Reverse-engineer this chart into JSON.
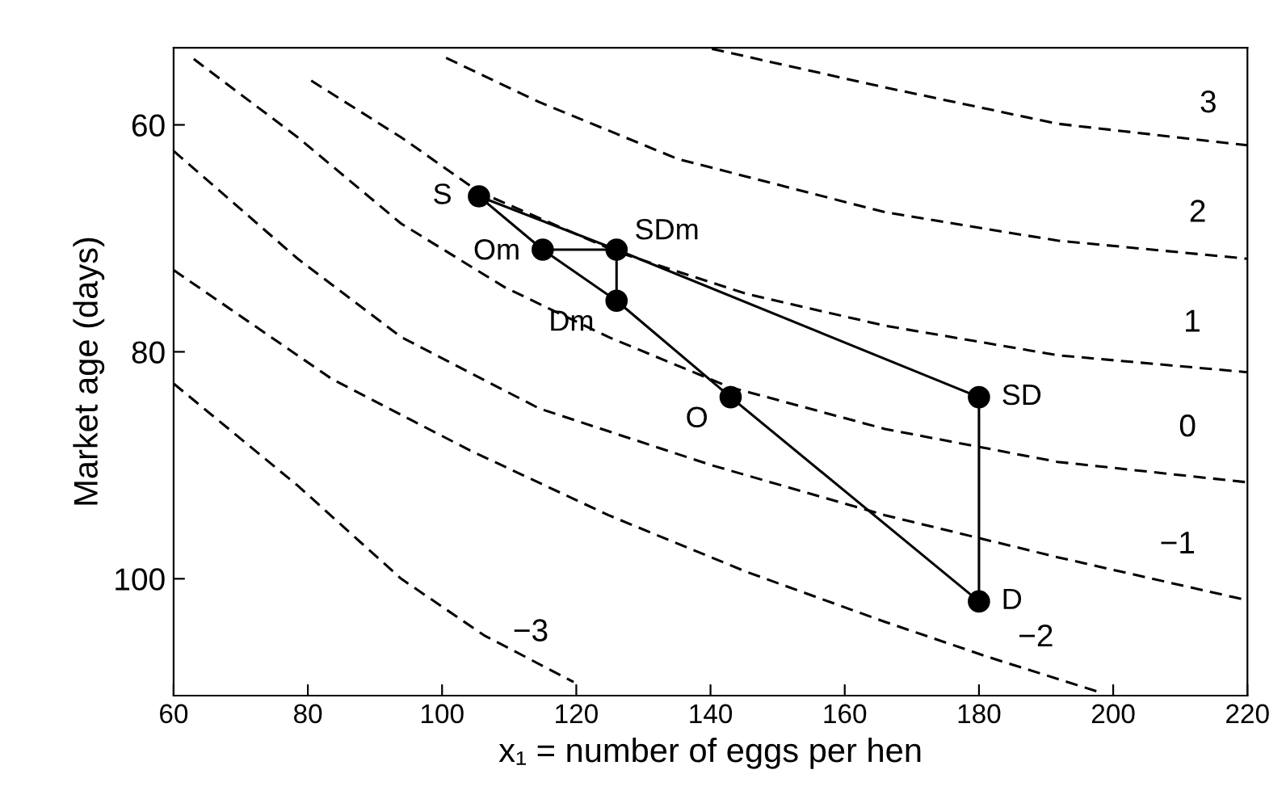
{
  "chart_data": {
    "type": "line",
    "xlabel": "x₁ = number of eggs per hen",
    "ylabel": "Market age (days)",
    "xlim": [
      60,
      220
    ],
    "ylim": [
      110.3,
      53.2
    ],
    "xticks": [
      60,
      80,
      100,
      120,
      140,
      160,
      180,
      200,
      220
    ],
    "yticks": [
      60,
      80,
      100
    ],
    "grid": false,
    "legend": false,
    "series": [
      {
        "name": "3",
        "line_style": "dashed",
        "marker": "none",
        "color": "#000000",
        "x": [
          140.2,
          166,
          191.7,
          220
        ],
        "values": [
          53.3,
          56.7,
          59.9,
          61.8
        ]
      },
      {
        "name": "2",
        "line_style": "dashed",
        "marker": "none",
        "color": "#000000",
        "x": [
          100.6,
          114.5,
          135.1,
          166,
          191.7,
          220
        ],
        "values": [
          54.1,
          58,
          63,
          67.7,
          70.2,
          71.8
        ]
      },
      {
        "name": "1",
        "line_style": "dashed",
        "marker": "none",
        "color": "#000000",
        "x": [
          80.5,
          93.9,
          105.5,
          126.1,
          145.4,
          166,
          191.7,
          220
        ],
        "values": [
          56.1,
          61.1,
          65.9,
          71.2,
          74.9,
          77.7,
          80.3,
          81.8
        ]
      },
      {
        "name": "0",
        "line_style": "dashed",
        "marker": "none",
        "color": "#000000",
        "x": [
          63,
          78.5,
          93.9,
          109.3,
          124.8,
          142.8,
          166,
          191.7,
          220
        ],
        "values": [
          54.2,
          61.1,
          68.7,
          74.3,
          78.7,
          83.1,
          86.8,
          89.7,
          91.5
        ]
      },
      {
        "name": "−1",
        "line_style": "dashed",
        "marker": "none",
        "color": "#000000",
        "x": [
          60,
          78.5,
          93.9,
          114.5,
          140.2,
          166,
          191.7,
          220
        ],
        "values": [
          62.3,
          71.8,
          78.7,
          85,
          90,
          94.4,
          98.1,
          101.9
        ]
      },
      {
        "name": "−2",
        "line_style": "dashed",
        "marker": "none",
        "color": "#000000",
        "x": [
          60,
          83.6,
          104.2,
          124.8,
          145.4,
          166,
          181.4,
          198
        ],
        "values": [
          72.8,
          82.4,
          88.7,
          94.4,
          99.4,
          103.8,
          106.9,
          110
        ]
      },
      {
        "name": "−3",
        "line_style": "dashed",
        "marker": "none",
        "color": "#000000",
        "x": [
          60,
          78.5,
          93.9,
          106.3,
          119.6
        ],
        "values": [
          82.8,
          91.8,
          100,
          105,
          109.1
        ]
      },
      {
        "line_style": "solid",
        "marker": "none",
        "color": "#000000",
        "x": [
          105.5,
          126,
          180
        ],
        "values": [
          66.3,
          71,
          84
        ]
      },
      {
        "line_style": "solid",
        "marker": "none",
        "color": "#000000",
        "x": [
          180,
          180
        ],
        "values": [
          84,
          102
        ]
      },
      {
        "line_style": "solid",
        "marker": "none",
        "color": "#000000",
        "x": [
          105.5,
          115,
          126,
          143,
          180
        ],
        "values": [
          66.3,
          71,
          75.5,
          84,
          102
        ]
      },
      {
        "line_style": "solid",
        "marker": "none",
        "color": "#000000",
        "x": [
          115,
          126
        ],
        "values": [
          71,
          71
        ]
      },
      {
        "line_style": "solid",
        "marker": "none",
        "color": "#000000",
        "x": [
          126,
          126
        ],
        "values": [
          71,
          75.5
        ]
      },
      {
        "type": "scatter",
        "marker": "circle",
        "color": "#000000",
        "x": [
          105.5,
          115,
          126,
          126,
          143,
          180,
          180
        ],
        "values": [
          66.3,
          71,
          71,
          75.5,
          84,
          84,
          102
        ]
      }
    ],
    "annotations": [
      {
        "text": "S",
        "x": 105.5,
        "y": 66.3
      },
      {
        "text": "Om",
        "x": 115,
        "y": 71
      },
      {
        "text": "SDm",
        "x": 126,
        "y": 71
      },
      {
        "text": "Dm",
        "x": 126,
        "y": 75.5
      },
      {
        "text": "O",
        "x": 143,
        "y": 84
      },
      {
        "text": "SD",
        "x": 180,
        "y": 84
      },
      {
        "text": "D",
        "x": 180,
        "y": 102
      }
    ]
  }
}
